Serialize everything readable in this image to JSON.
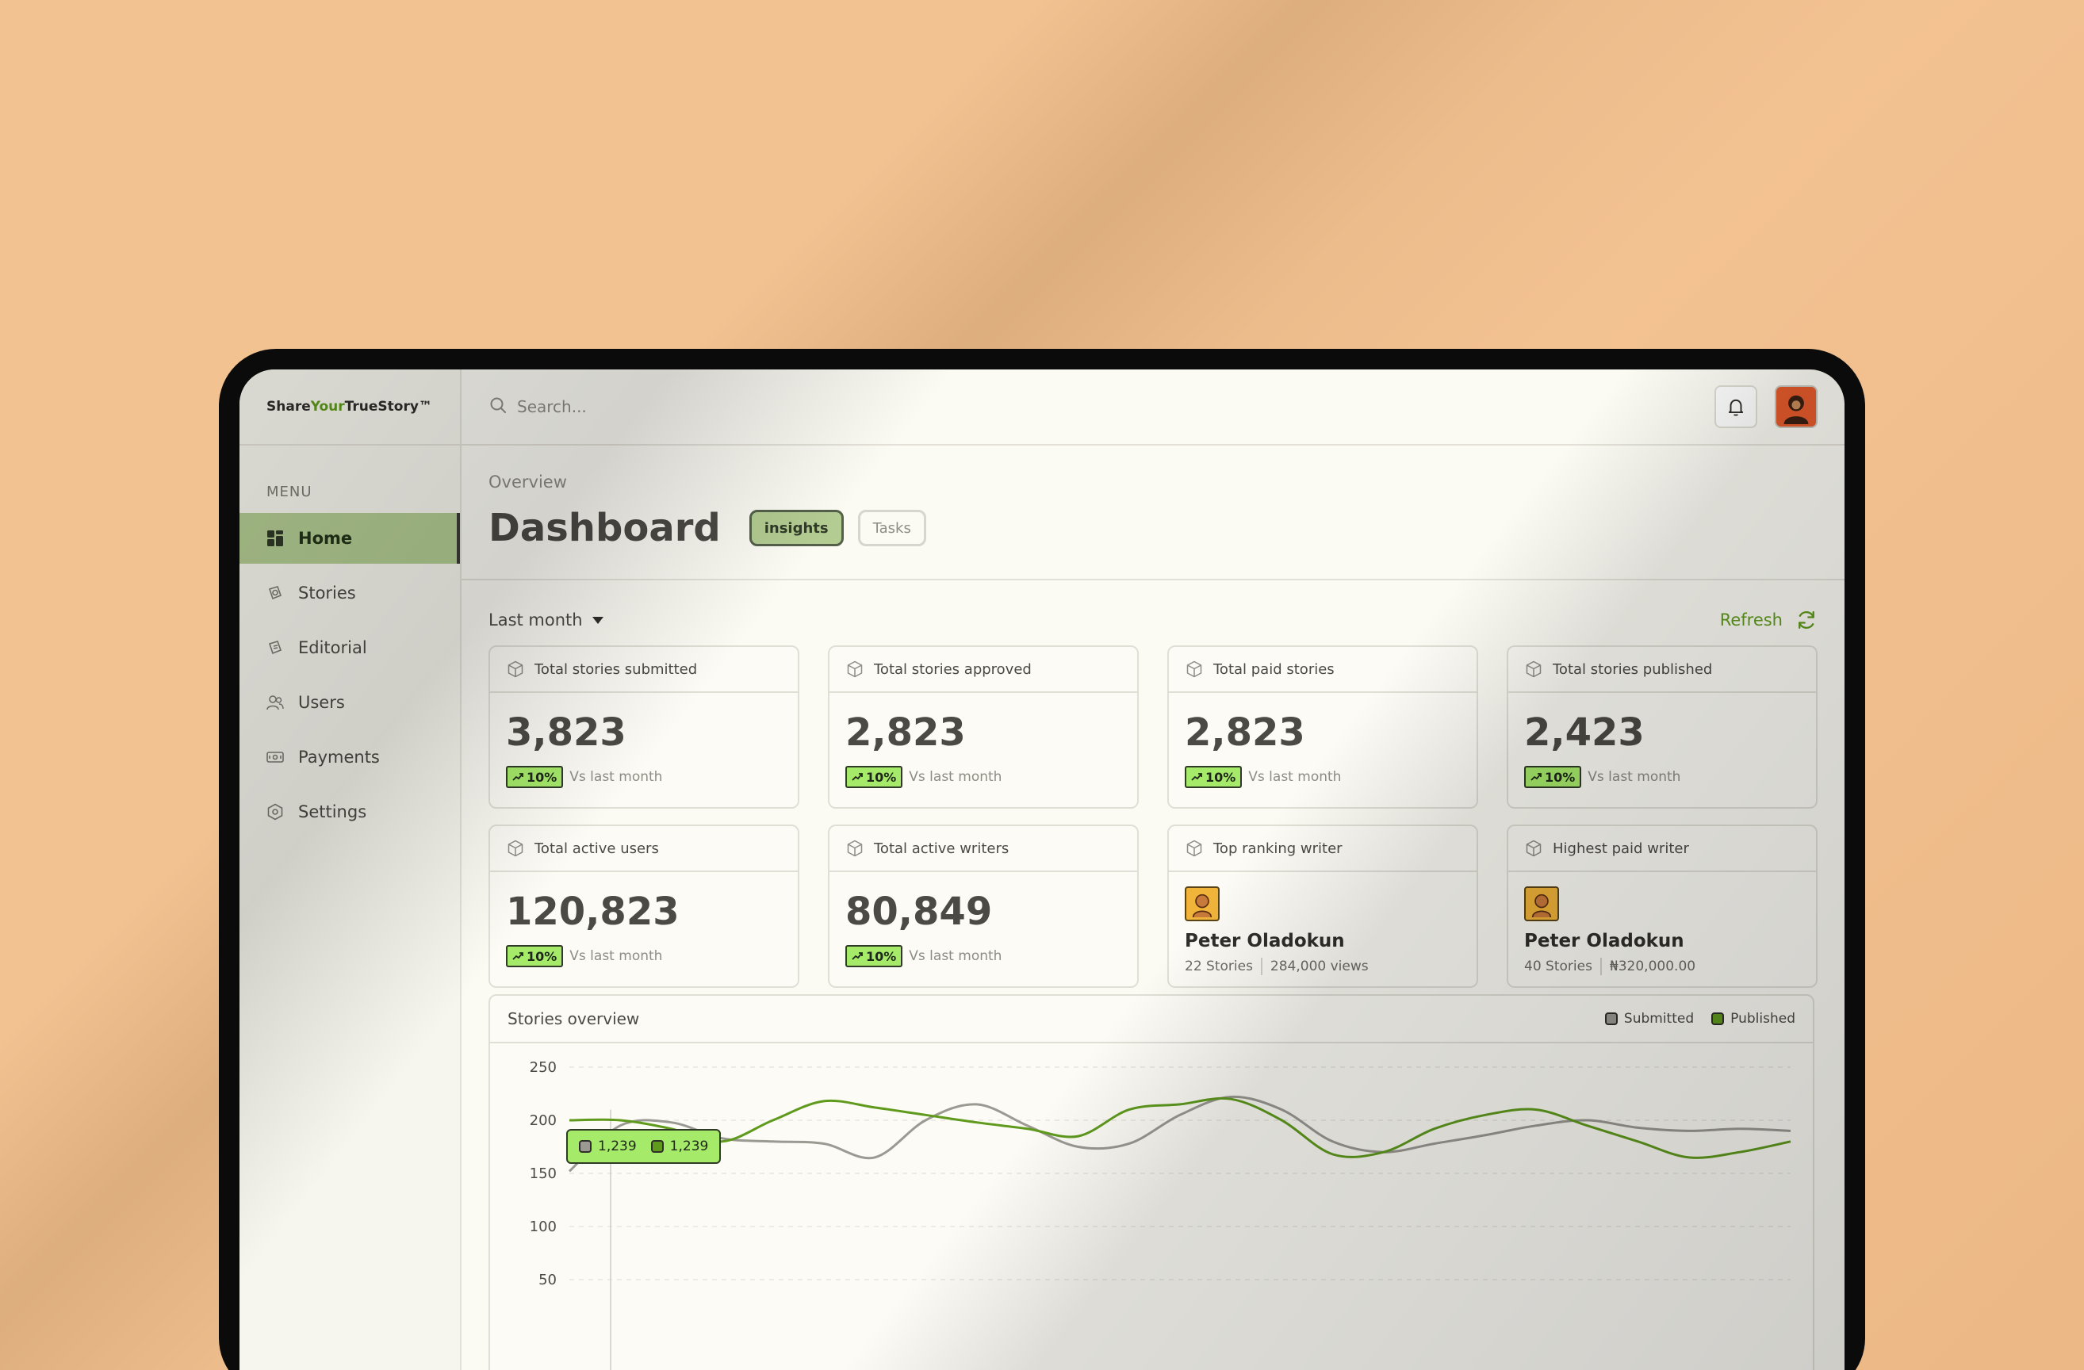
{
  "brand": {
    "part1": "Share",
    "part2": "Your",
    "part3": "TrueStory™"
  },
  "search": {
    "placeholder": "Search..."
  },
  "sidebar": {
    "menu_title": "MENU",
    "items": [
      {
        "label": "Home",
        "icon": "grid-icon",
        "active": true
      },
      {
        "label": "Stories",
        "icon": "stories-icon"
      },
      {
        "label": "Editorial",
        "icon": "editorial-icon"
      },
      {
        "label": "Users",
        "icon": "users-icon"
      },
      {
        "label": "Payments",
        "icon": "payments-icon"
      },
      {
        "label": "Settings",
        "icon": "settings-icon"
      }
    ]
  },
  "header": {
    "overview": "Overview",
    "title": "Dashboard",
    "tabs": [
      {
        "label": "insights",
        "active": true
      },
      {
        "label": "Tasks"
      }
    ]
  },
  "filters": {
    "period": "Last month",
    "refresh": "Refresh"
  },
  "stats": [
    {
      "label": "Total stories submitted",
      "value": "3,823",
      "trend": "10%",
      "compare": "Vs last month"
    },
    {
      "label": "Total stories approved",
      "value": "2,823",
      "trend": "10%",
      "compare": "Vs last month"
    },
    {
      "label": "Total paid stories",
      "value": "2,823",
      "trend": "10%",
      "compare": "Vs last month"
    },
    {
      "label": "Total stories published",
      "value": "2,423",
      "trend": "10%",
      "compare": "Vs last month"
    },
    {
      "label": "Total active users",
      "value": "120,823",
      "trend": "10%",
      "compare": "Vs last month"
    },
    {
      "label": "Total active writers",
      "value": "80,849",
      "trend": "10%",
      "compare": "Vs last month"
    }
  ],
  "writers": [
    {
      "label": "Top ranking writer",
      "name": "Peter Oladokun",
      "meta1": "22 Stories",
      "meta2": "284,000 views"
    },
    {
      "label": "Highest paid writer",
      "name": "Peter Oladokun",
      "meta1": "40 Stories",
      "meta2": "₦320,000.00"
    }
  ],
  "chart": {
    "title": "Stories overview",
    "tooltip": {
      "submitted": "1,239",
      "published": "1,239"
    }
  },
  "chart_data": {
    "type": "line",
    "title": "Stories overview",
    "xlabel": "",
    "ylabel": "",
    "ylim": [
      50,
      250
    ],
    "yticks": [
      250,
      200,
      150,
      100,
      50
    ],
    "grid": true,
    "legend": "top-right",
    "x": [
      0,
      1,
      2,
      3,
      4,
      5,
      6,
      7,
      8,
      9,
      10,
      11,
      12,
      13,
      14,
      15,
      16,
      17,
      18,
      19,
      20,
      21,
      22,
      23,
      24
    ],
    "series": [
      {
        "name": "Submitted",
        "color": "#9a9992",
        "values": [
          152,
          195,
          198,
          183,
          180,
          178,
          165,
          200,
          215,
          195,
          175,
          178,
          205,
          222,
          210,
          180,
          170,
          178,
          186,
          195,
          200,
          193,
          190,
          192,
          190
        ]
      },
      {
        "name": "Published",
        "color": "#5f9a1d",
        "values": [
          200,
          200,
          192,
          180,
          200,
          218,
          212,
          205,
          198,
          192,
          185,
          210,
          215,
          220,
          200,
          168,
          170,
          192,
          205,
          210,
          195,
          180,
          165,
          170,
          180
        ]
      }
    ]
  },
  "colors": {
    "accent": "#5f9a1d",
    "active_nav": "#b3cc92",
    "trend": "#a6ea6a"
  }
}
